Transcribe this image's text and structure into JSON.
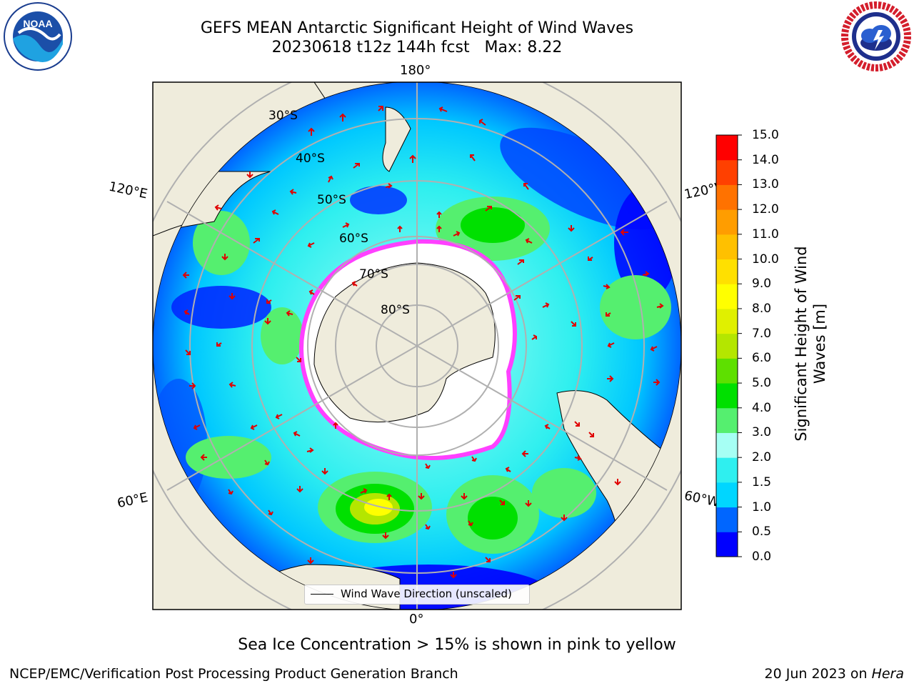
{
  "title": "GEFS MEAN Antarctic Significant Height of Wind Waves",
  "subtitle": "20230618 t12z 144h fcst   Max: 8.22",
  "lon_labels": [
    "180°",
    "120°E",
    "120°W",
    "60°E",
    "60°W",
    "0°"
  ],
  "lat_labels": [
    "30°S",
    "40°S",
    "50°S",
    "60°S",
    "70°S",
    "80°S"
  ],
  "legend_label": "Wind Wave Direction (unscaled)",
  "note": "Sea Ice Concentration > 15% is shown in pink to yellow",
  "credit": "NCEP/EMC/Verification Post Processing Product Generation Branch",
  "date": "20 Jun 2023 on",
  "machine": "Hera",
  "logos": {
    "left": "NOAA",
    "right": "NATIONAL WEATHER SERVICE"
  },
  "colorbar": {
    "label": "Significant Height of Wind Waves [m]",
    "ticks": [
      "15.0",
      "14.0",
      "13.0",
      "12.0",
      "11.0",
      "10.0",
      "9.0",
      "8.0",
      "7.0",
      "6.0",
      "5.0",
      "4.0",
      "3.0",
      "2.0",
      "1.5",
      "1.0",
      "0.5",
      "0.0"
    ],
    "levels": [
      0,
      0.5,
      1,
      1.5,
      2,
      3,
      4,
      5,
      6,
      7,
      8,
      9,
      10,
      11,
      12,
      13,
      14,
      15
    ],
    "colors": [
      "#0000ff",
      "#0066ff",
      "#00d6ff",
      "#2fefef",
      "#a6fff4",
      "#55ef6f",
      "#00e000",
      "#5ee000",
      "#b4e600",
      "#e0f000",
      "#ffff00",
      "#ffe000",
      "#ffc000",
      "#ff9d00",
      "#ff7200",
      "#ff4000",
      "#ff0000"
    ]
  },
  "colors": {
    "land": "#efecdc",
    "ocean_low": "#00c8ff",
    "ice_edge": "#ff40ff",
    "arrows": "#e00000",
    "grid": "#b0b0b0"
  },
  "chart_data": {
    "type": "heatmap",
    "projection": "south polar stereographic",
    "variable": "Significant Height of Wind Waves [m]",
    "max": 8.22,
    "range": [
      0,
      15
    ],
    "meridians_deg": [
      0,
      60,
      120,
      180,
      -120,
      -60
    ],
    "parallels_deg": [
      -30,
      -40,
      -50,
      -60,
      -70,
      -80
    ],
    "notable_maxima": [
      {
        "region": "South Atlantic / Indian Ocean sector near 0°-30°E",
        "approx_value": 7.0
      },
      {
        "region": "Southern Pacific south of Australia",
        "approx_value": 4.0
      },
      {
        "region": "Southeast Pacific",
        "approx_value": 4.0
      },
      {
        "region": "South Indian Ocean near 60°E",
        "approx_value": 4.0
      }
    ]
  }
}
